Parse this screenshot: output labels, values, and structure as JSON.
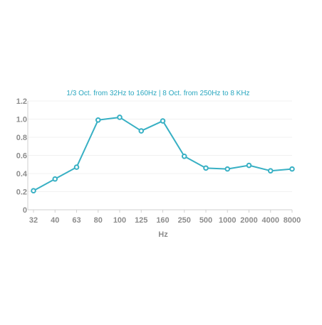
{
  "chart_data": {
    "type": "line",
    "title": "1/3 Oct. from 32Hz to 160Hz | 8 Oct. from 250Hz to 8 KHz",
    "xlabel": "Hz",
    "ylabel": "",
    "categories": [
      "32",
      "40",
      "63",
      "80",
      "100",
      "125",
      "160",
      "250",
      "500",
      "1000",
      "2000",
      "4000",
      "8000"
    ],
    "series": [
      {
        "values": [
          0.21,
          0.34,
          0.47,
          0.99,
          1.02,
          0.87,
          0.98,
          0.59,
          0.46,
          0.45,
          0.49,
          0.43,
          0.45
        ]
      }
    ],
    "ylim": [
      0,
      1.2
    ],
    "yticks": [
      "0",
      "0.2",
      "0.4",
      "0.6",
      "0.8",
      "1.0",
      "1.2"
    ],
    "grid": true,
    "line_color": "#38b0c4",
    "grid_color": "#f1f1f1",
    "axis_color": "#cfcfcf"
  }
}
